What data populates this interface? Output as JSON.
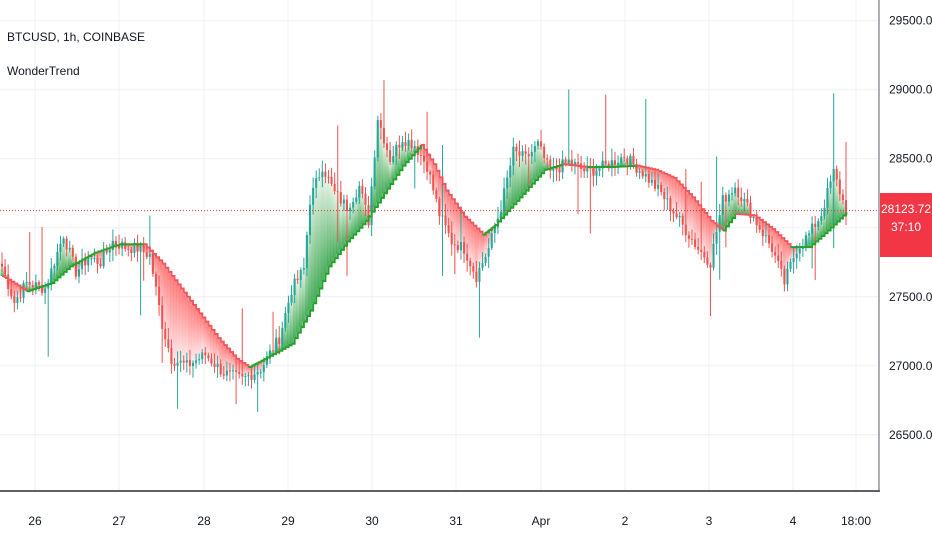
{
  "legend": {
    "symbol": "BTCUSD, 1h, COINBASE",
    "indicator": "WonderTrend"
  },
  "last_price_label": "28123.72",
  "countdown_label": "37:10",
  "colors": {
    "up": "#26a69a",
    "down": "#ef5350",
    "trend_up": "#22a22a",
    "trend_down": "#f0575c",
    "fill_up": "#2ea043",
    "fill_down": "#ff6b6b",
    "price_line": "#e53935",
    "grid": "#eef0f3",
    "axis_text": "#131722",
    "axis_line": "#5d606b"
  },
  "chart_data": {
    "type": "candlestick",
    "title": "",
    "x_ticks": [
      "26",
      "27",
      "28",
      "29",
      "30",
      "31",
      "Apr",
      "2",
      "3",
      "4",
      "18:00"
    ],
    "y_ticks": [
      26500,
      27000,
      27500,
      28000,
      28500,
      29000,
      29500
    ],
    "y_tick_labels": [
      "26500.00",
      "27000.00",
      "27500.00",
      "28000.00",
      "28500.00",
      "29000.00",
      "29500.00"
    ],
    "ylim": [
      26100,
      29650
    ],
    "last_price": 28123.72,
    "grid": true,
    "trend_anchors": [
      {
        "i": 0,
        "v": 27650
      },
      {
        "i": 8,
        "v": 27540
      },
      {
        "i": 16,
        "v": 27600
      },
      {
        "i": 22,
        "v": 27720
      },
      {
        "i": 30,
        "v": 27820
      },
      {
        "i": 38,
        "v": 27880
      },
      {
        "i": 46,
        "v": 27880
      },
      {
        "i": 52,
        "v": 27740
      },
      {
        "i": 58,
        "v": 27560
      },
      {
        "i": 64,
        "v": 27380
      },
      {
        "i": 70,
        "v": 27200
      },
      {
        "i": 76,
        "v": 27050
      },
      {
        "i": 80,
        "v": 26990
      },
      {
        "i": 86,
        "v": 27060
      },
      {
        "i": 94,
        "v": 27160
      },
      {
        "i": 100,
        "v": 27400
      },
      {
        "i": 106,
        "v": 27720
      },
      {
        "i": 112,
        "v": 27900
      },
      {
        "i": 118,
        "v": 28050
      },
      {
        "i": 124,
        "v": 28250
      },
      {
        "i": 130,
        "v": 28450
      },
      {
        "i": 136,
        "v": 28600
      },
      {
        "i": 140,
        "v": 28460
      },
      {
        "i": 144,
        "v": 28270
      },
      {
        "i": 150,
        "v": 28080
      },
      {
        "i": 156,
        "v": 27950
      },
      {
        "i": 160,
        "v": 28020
      },
      {
        "i": 164,
        "v": 28120
      },
      {
        "i": 170,
        "v": 28270
      },
      {
        "i": 176,
        "v": 28420
      },
      {
        "i": 182,
        "v": 28460
      },
      {
        "i": 190,
        "v": 28440
      },
      {
        "i": 198,
        "v": 28440
      },
      {
        "i": 206,
        "v": 28450
      },
      {
        "i": 212,
        "v": 28420
      },
      {
        "i": 218,
        "v": 28360
      },
      {
        "i": 224,
        "v": 28220
      },
      {
        "i": 230,
        "v": 28050
      },
      {
        "i": 234,
        "v": 27980
      },
      {
        "i": 238,
        "v": 28100
      },
      {
        "i": 244,
        "v": 28090
      },
      {
        "i": 250,
        "v": 27990
      },
      {
        "i": 256,
        "v": 27860
      },
      {
        "i": 262,
        "v": 27860
      },
      {
        "i": 268,
        "v": 27980
      },
      {
        "i": 274,
        "v": 28110
      }
    ],
    "close_anchors": [
      {
        "i": 0,
        "v": 27720
      },
      {
        "i": 4,
        "v": 27460
      },
      {
        "i": 8,
        "v": 27600
      },
      {
        "i": 14,
        "v": 27560
      },
      {
        "i": 20,
        "v": 27950
      },
      {
        "i": 24,
        "v": 27680
      },
      {
        "i": 28,
        "v": 27780
      },
      {
        "i": 32,
        "v": 27750
      },
      {
        "i": 36,
        "v": 27900
      },
      {
        "i": 40,
        "v": 27860
      },
      {
        "i": 44,
        "v": 27850
      },
      {
        "i": 48,
        "v": 27800
      },
      {
        "i": 52,
        "v": 27300
      },
      {
        "i": 55,
        "v": 27050
      },
      {
        "i": 60,
        "v": 27000
      },
      {
        "i": 66,
        "v": 27080
      },
      {
        "i": 72,
        "v": 26950
      },
      {
        "i": 78,
        "v": 26900
      },
      {
        "i": 84,
        "v": 26980
      },
      {
        "i": 90,
        "v": 27200
      },
      {
        "i": 94,
        "v": 27550
      },
      {
        "i": 98,
        "v": 27700
      },
      {
        "i": 100,
        "v": 28200
      },
      {
        "i": 104,
        "v": 28450
      },
      {
        "i": 108,
        "v": 28250
      },
      {
        "i": 112,
        "v": 28150
      },
      {
        "i": 116,
        "v": 28300
      },
      {
        "i": 119,
        "v": 28050
      },
      {
        "i": 122,
        "v": 28800
      },
      {
        "i": 126,
        "v": 28500
      },
      {
        "i": 130,
        "v": 28650
      },
      {
        "i": 134,
        "v": 28600
      },
      {
        "i": 138,
        "v": 28450
      },
      {
        "i": 142,
        "v": 28100
      },
      {
        "i": 146,
        "v": 27900
      },
      {
        "i": 150,
        "v": 27850
      },
      {
        "i": 154,
        "v": 27650
      },
      {
        "i": 158,
        "v": 27850
      },
      {
        "i": 162,
        "v": 28150
      },
      {
        "i": 166,
        "v": 28550
      },
      {
        "i": 170,
        "v": 28500
      },
      {
        "i": 174,
        "v": 28600
      },
      {
        "i": 178,
        "v": 28400
      },
      {
        "i": 184,
        "v": 28480
      },
      {
        "i": 190,
        "v": 28400
      },
      {
        "i": 196,
        "v": 28450
      },
      {
        "i": 202,
        "v": 28520
      },
      {
        "i": 208,
        "v": 28400
      },
      {
        "i": 214,
        "v": 28250
      },
      {
        "i": 220,
        "v": 28050
      },
      {
        "i": 226,
        "v": 27850
      },
      {
        "i": 230,
        "v": 27750
      },
      {
        "i": 234,
        "v": 28200
      },
      {
        "i": 238,
        "v": 28300
      },
      {
        "i": 242,
        "v": 28150
      },
      {
        "i": 246,
        "v": 28000
      },
      {
        "i": 250,
        "v": 27850
      },
      {
        "i": 254,
        "v": 27600
      },
      {
        "i": 258,
        "v": 27850
      },
      {
        "i": 262,
        "v": 27950
      },
      {
        "i": 266,
        "v": 28100
      },
      {
        "i": 270,
        "v": 28400
      },
      {
        "i": 274,
        "v": 28123
      }
    ],
    "candle_count": 275
  }
}
